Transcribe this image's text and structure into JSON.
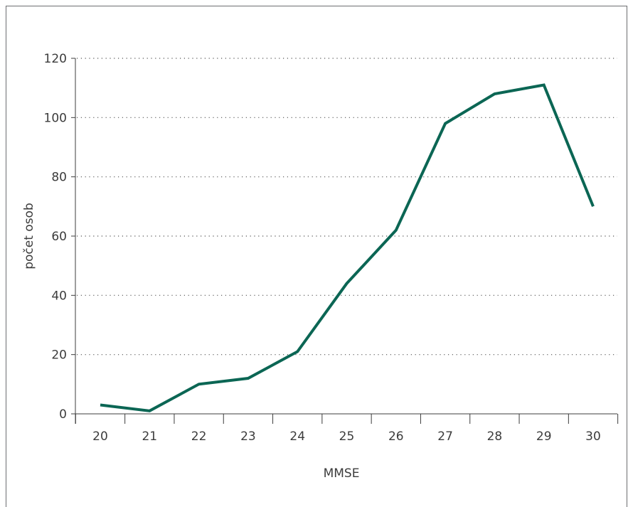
{
  "chart_data": {
    "type": "line",
    "title": "",
    "xlabel": "MMSE",
    "ylabel": "počet osob",
    "x": [
      20,
      21,
      22,
      23,
      24,
      25,
      26,
      27,
      28,
      29,
      30
    ],
    "series": [
      {
        "values": [
          3,
          1,
          10,
          12,
          21,
          44,
          62,
          98,
          108,
          111,
          70
        ]
      }
    ],
    "ylim": [
      0,
      120
    ],
    "yticks": [
      0,
      20,
      40,
      60,
      80,
      100,
      120
    ],
    "grid": "horizontal-dotted",
    "legend": "none",
    "line_color": "#0b6654"
  }
}
